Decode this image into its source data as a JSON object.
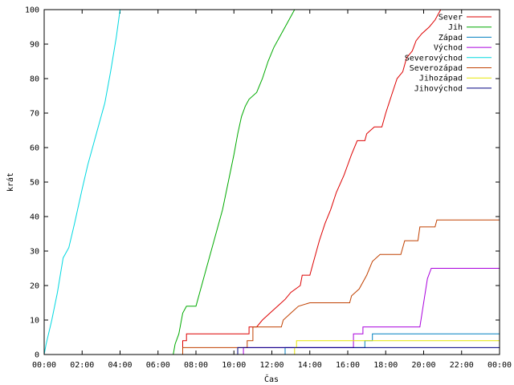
{
  "chart_data": {
    "type": "line",
    "title": "",
    "xlabel": "Čas",
    "ylabel": "krát",
    "xlim": [
      0,
      24
    ],
    "ylim": [
      0,
      100
    ],
    "x_ticks": [
      "00:00",
      "02:00",
      "04:00",
      "06:00",
      "08:00",
      "10:00",
      "12:00",
      "14:00",
      "16:00",
      "18:00",
      "20:00",
      "22:00",
      "00:00"
    ],
    "y_ticks": [
      0,
      10,
      20,
      30,
      40,
      50,
      60,
      70,
      80,
      90,
      100
    ],
    "grid": false,
    "legend_position": "top-right",
    "series": [
      {
        "name": "Sever",
        "color": "#dd0000",
        "points": [
          [
            7.3,
            0
          ],
          [
            7.3,
            4
          ],
          [
            7.5,
            4
          ],
          [
            7.5,
            6
          ],
          [
            10.8,
            6
          ],
          [
            10.8,
            8
          ],
          [
            11.2,
            8
          ],
          [
            11.5,
            10
          ],
          [
            11.9,
            12
          ],
          [
            12.3,
            14
          ],
          [
            12.7,
            16
          ],
          [
            13.0,
            18
          ],
          [
            13.5,
            20
          ],
          [
            13.6,
            23
          ],
          [
            14.0,
            23
          ],
          [
            14.2,
            27
          ],
          [
            14.5,
            33
          ],
          [
            14.8,
            38
          ],
          [
            15.1,
            42
          ],
          [
            15.4,
            47
          ],
          [
            15.8,
            52
          ],
          [
            16.0,
            55
          ],
          [
            16.2,
            58
          ],
          [
            16.5,
            62
          ],
          [
            16.9,
            62
          ],
          [
            17.0,
            64
          ],
          [
            17.4,
            66
          ],
          [
            17.8,
            66
          ],
          [
            18.0,
            70
          ],
          [
            18.3,
            75
          ],
          [
            18.6,
            80
          ],
          [
            18.9,
            82
          ],
          [
            19.1,
            86
          ],
          [
            19.4,
            88
          ],
          [
            19.6,
            91
          ],
          [
            19.9,
            93
          ],
          [
            20.3,
            95
          ],
          [
            20.6,
            97
          ],
          [
            20.8,
            99
          ],
          [
            20.9,
            100
          ]
        ]
      },
      {
        "name": "Jih",
        "color": "#00aa00",
        "points": [
          [
            6.8,
            0
          ],
          [
            6.9,
            3
          ],
          [
            7.1,
            6
          ],
          [
            7.2,
            9
          ],
          [
            7.3,
            12
          ],
          [
            7.5,
            14
          ],
          [
            8.0,
            14
          ],
          [
            8.2,
            18
          ],
          [
            8.5,
            24
          ],
          [
            8.8,
            30
          ],
          [
            9.1,
            36
          ],
          [
            9.4,
            42
          ],
          [
            9.7,
            50
          ],
          [
            10.0,
            58
          ],
          [
            10.2,
            64
          ],
          [
            10.4,
            69
          ],
          [
            10.6,
            72
          ],
          [
            10.8,
            74
          ],
          [
            11.2,
            76
          ],
          [
            11.5,
            80
          ],
          [
            11.8,
            85
          ],
          [
            12.1,
            89
          ],
          [
            12.4,
            92
          ],
          [
            12.8,
            96
          ],
          [
            13.0,
            98
          ],
          [
            13.2,
            100
          ],
          [
            13.5,
            100
          ]
        ]
      },
      {
        "name": "Západ",
        "color": "#0080c0",
        "points": [
          [
            12.7,
            0
          ],
          [
            12.7,
            2
          ],
          [
            16.9,
            2
          ],
          [
            16.9,
            4
          ],
          [
            17.3,
            4
          ],
          [
            17.3,
            6
          ],
          [
            24,
            6
          ]
        ]
      },
      {
        "name": "Východ",
        "color": "#aa00dd",
        "points": [
          [
            10.5,
            0
          ],
          [
            10.5,
            2
          ],
          [
            16.3,
            2
          ],
          [
            16.3,
            6
          ],
          [
            16.8,
            6
          ],
          [
            16.8,
            8
          ],
          [
            19.8,
            8
          ],
          [
            20.0,
            15
          ],
          [
            20.2,
            22
          ],
          [
            20.4,
            25
          ],
          [
            24,
            25
          ]
        ]
      },
      {
        "name": "Severovýchod",
        "color": "#00d8e0",
        "points": [
          [
            0,
            0
          ],
          [
            0.1,
            3
          ],
          [
            0.4,
            10
          ],
          [
            0.7,
            18
          ],
          [
            1.0,
            28
          ],
          [
            1.3,
            31
          ],
          [
            1.6,
            38
          ],
          [
            2.0,
            48
          ],
          [
            2.3,
            55
          ],
          [
            2.6,
            61
          ],
          [
            2.9,
            67
          ],
          [
            3.2,
            73
          ],
          [
            3.5,
            82
          ],
          [
            3.8,
            92
          ],
          [
            4.0,
            100
          ],
          [
            4.1,
            100
          ]
        ]
      },
      {
        "name": "Severozápad",
        "color": "#c04000",
        "points": [
          [
            7.3,
            0
          ],
          [
            7.3,
            2
          ],
          [
            10.7,
            2
          ],
          [
            10.7,
            4
          ],
          [
            11.0,
            4
          ],
          [
            11.0,
            8
          ],
          [
            12.5,
            8
          ],
          [
            12.6,
            10
          ],
          [
            13.0,
            12
          ],
          [
            13.4,
            14
          ],
          [
            14.0,
            15
          ],
          [
            16.1,
            15
          ],
          [
            16.2,
            17
          ],
          [
            16.6,
            19
          ],
          [
            17.0,
            23
          ],
          [
            17.3,
            27
          ],
          [
            17.7,
            29
          ],
          [
            18.8,
            29
          ],
          [
            19.0,
            33
          ],
          [
            19.7,
            33
          ],
          [
            19.8,
            37
          ],
          [
            20.6,
            37
          ],
          [
            20.7,
            39
          ],
          [
            24,
            39
          ]
        ]
      },
      {
        "name": "Jihozápad",
        "color": "#e6e600",
        "points": [
          [
            13.2,
            0
          ],
          [
            13.2,
            2
          ],
          [
            13.3,
            2
          ],
          [
            13.3,
            4
          ],
          [
            24,
            4
          ]
        ]
      },
      {
        "name": "Jihovýchod",
        "color": "#000080",
        "points": [
          [
            10.2,
            0
          ],
          [
            10.2,
            2
          ],
          [
            24,
            2
          ]
        ]
      }
    ]
  }
}
